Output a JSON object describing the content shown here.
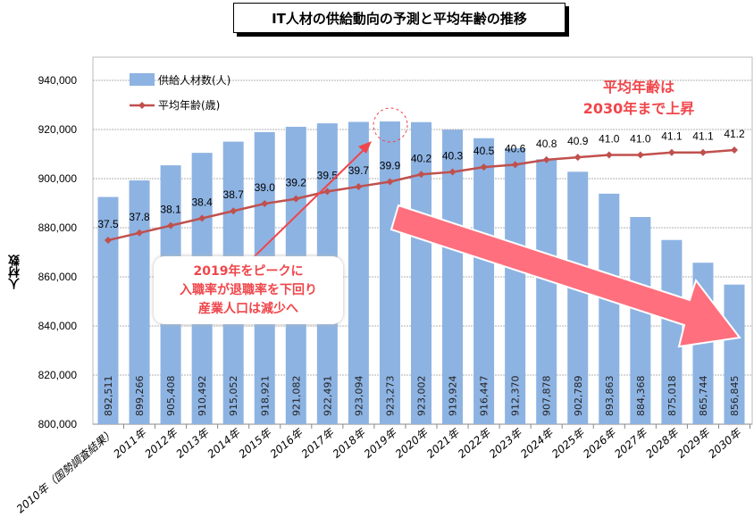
{
  "chart_data": {
    "type": "bar+line",
    "title": "IT人材の供給動向の予測と平均年齢の推移",
    "ylabel": "人材数",
    "ylim": [
      800000,
      940000
    ],
    "yticks": [
      "800,000",
      "820,000",
      "840,000",
      "860,000",
      "880,000",
      "900,000",
      "920,000",
      "940,000"
    ],
    "categories": [
      "2010年（国勢調査結果）",
      "2011年",
      "2012年",
      "2013年",
      "2014年",
      "2015年",
      "2016年",
      "2017年",
      "2018年",
      "2019年",
      "2020年",
      "2021年",
      "2022年",
      "2023年",
      "2024年",
      "2025年",
      "2026年",
      "2027年",
      "2028年",
      "2029年",
      "2030年"
    ],
    "series": [
      {
        "name": "供給人材数(人)",
        "type": "bar",
        "color": "#8db3e2",
        "values": [
          892511,
          899266,
          905408,
          910492,
          915052,
          918921,
          921082,
          922491,
          923094,
          923273,
          923002,
          919924,
          916447,
          912370,
          907878,
          902789,
          893863,
          884368,
          875018,
          865744,
          856845
        ],
        "labels": [
          "892,511",
          "899,266",
          "905,408",
          "910,492",
          "915,052",
          "918,921",
          "921,082",
          "922,491",
          "923,094",
          "923,273",
          "923,002",
          "919,924",
          "916,447",
          "912,370",
          "907,878",
          "902,789",
          "893,863",
          "884,368",
          "875,018",
          "865,744",
          "856,845"
        ]
      },
      {
        "name": "平均年齢(歳)",
        "type": "line",
        "color": "#c0504d",
        "values": [
          37.5,
          37.8,
          38.1,
          38.4,
          38.7,
          39.0,
          39.2,
          39.5,
          39.7,
          39.9,
          40.2,
          40.3,
          40.5,
          40.6,
          40.8,
          40.9,
          41.0,
          41.0,
          41.1,
          41.1,
          41.2
        ],
        "labels": [
          "37.5",
          "37.8",
          "38.1",
          "38.4",
          "38.7",
          "39.0",
          "39.2",
          "39.5",
          "39.7",
          "39.9",
          "40.2",
          "40.3",
          "40.5",
          "40.6",
          "40.8",
          "40.9",
          "41.0",
          "41.0",
          "41.1",
          "41.1",
          "41.2"
        ]
      }
    ],
    "grid": true,
    "legend": "top-left",
    "annotations": {
      "age_note": [
        "平均年齢は",
        "2030年まで上昇"
      ],
      "peak_note": [
        "2019年をピークに",
        "入職率が退職率を下回り",
        "産業人口は減少へ"
      ]
    }
  }
}
